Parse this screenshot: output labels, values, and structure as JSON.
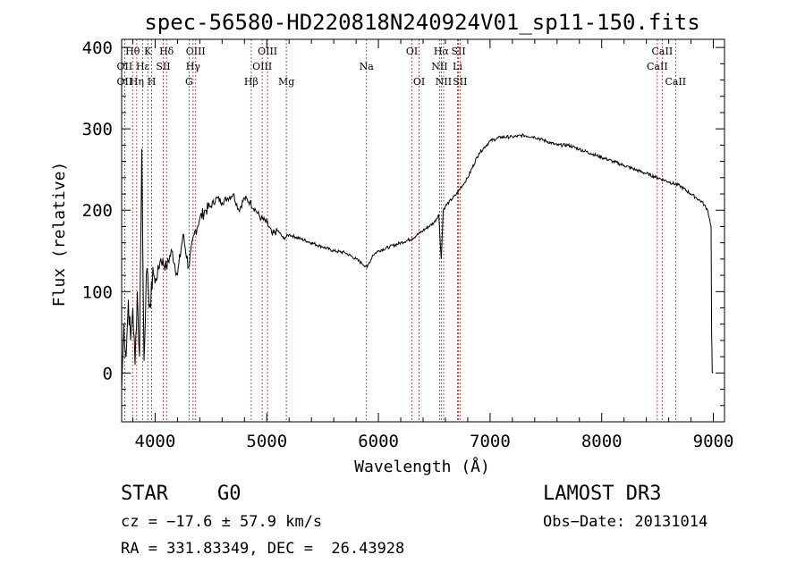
{
  "chart_data": {
    "type": "line",
    "title": "spec-56580-HD220818N240924V01_sp11-150.fits",
    "xlabel": "Wavelength (Å)",
    "ylabel": "Flux (relative)",
    "xlim": [
      3700,
      9100
    ],
    "ylim": [
      -60,
      410
    ],
    "x_ticks": [
      4000,
      5000,
      6000,
      7000,
      8000,
      9000
    ],
    "y_ticks": [
      0,
      100,
      200,
      300,
      400
    ],
    "series": [
      {
        "name": "flux",
        "x": [
          3700,
          3720,
          3740,
          3760,
          3780,
          3800,
          3820,
          3840,
          3860,
          3880,
          3900,
          3920,
          3940,
          3960,
          3980,
          4000,
          4050,
          4100,
          4150,
          4200,
          4250,
          4300,
          4350,
          4400,
          4450,
          4500,
          4550,
          4600,
          4650,
          4700,
          4750,
          4800,
          4850,
          4900,
          4950,
          5000,
          5050,
          5100,
          5150,
          5200,
          5300,
          5400,
          5500,
          5600,
          5700,
          5800,
          5850,
          5900,
          5950,
          6000,
          6100,
          6200,
          6300,
          6400,
          6500,
          6540,
          6563,
          6580,
          6600,
          6700,
          6800,
          6900,
          7000,
          7100,
          7200,
          7300,
          7400,
          7500,
          7600,
          7700,
          7800,
          7900,
          8000,
          8100,
          8200,
          8300,
          8400,
          8500,
          8600,
          8700,
          8800,
          8850,
          8900,
          8950,
          8980,
          8985,
          8990,
          8995
        ],
        "y": [
          -20,
          60,
          20,
          90,
          40,
          80,
          10,
          100,
          20,
          275,
          15,
          120,
          100,
          80,
          130,
          110,
          140,
          130,
          150,
          120,
          170,
          130,
          170,
          190,
          200,
          205,
          215,
          210,
          215,
          220,
          200,
          215,
          210,
          200,
          190,
          185,
          170,
          175,
          165,
          170,
          165,
          160,
          155,
          150,
          148,
          140,
          135,
          130,
          145,
          150,
          155,
          160,
          165,
          175,
          185,
          195,
          140,
          200,
          205,
          220,
          240,
          270,
          285,
          290,
          290,
          292,
          290,
          285,
          280,
          280,
          275,
          270,
          265,
          260,
          255,
          250,
          245,
          240,
          235,
          230,
          220,
          215,
          210,
          200,
          180,
          50,
          0,
          0
        ]
      }
    ],
    "spectral_lines": [
      {
        "label": "Hθ",
        "x": 3798,
        "row": 0
      },
      {
        "label": "K",
        "x": 3934,
        "row": 0
      },
      {
        "label": "Hδ",
        "x": 4102,
        "row": 0
      },
      {
        "label": "OIII",
        "x": 4363,
        "row": 0
      },
      {
        "label": "OIII",
        "x": 5007,
        "row": 0
      },
      {
        "label": "OI",
        "x": 6300,
        "row": 0
      },
      {
        "label": "Hα",
        "x": 6563,
        "row": 0
      },
      {
        "label": "SII",
        "x": 6717,
        "row": 0
      },
      {
        "label": "CaII",
        "x": 8542,
        "row": 0
      },
      {
        "label": "OII",
        "x": 3727,
        "row": 1
      },
      {
        "label": "Hε",
        "x": 3889,
        "row": 1
      },
      {
        "label": "SII",
        "x": 4072,
        "row": 1
      },
      {
        "label": "Hγ",
        "x": 4340,
        "row": 1
      },
      {
        "label": "OIII",
        "x": 4959,
        "row": 1
      },
      {
        "label": "Na",
        "x": 5893,
        "row": 1
      },
      {
        "label": "NII",
        "x": 6548,
        "row": 1
      },
      {
        "label": "Li",
        "x": 6708,
        "row": 1
      },
      {
        "label": "CaII",
        "x": 8498,
        "row": 1
      },
      {
        "label": "OII",
        "x": 3727,
        "row": 2
      },
      {
        "label": "Hη",
        "x": 3835,
        "row": 2
      },
      {
        "label": "H",
        "x": 3969,
        "row": 2
      },
      {
        "label": "G",
        "x": 4304,
        "row": 2
      },
      {
        "label": "Hβ",
        "x": 4861,
        "row": 2
      },
      {
        "label": "Mg",
        "x": 5175,
        "row": 2
      },
      {
        "label": "OI",
        "x": 6364,
        "row": 2
      },
      {
        "label": "NII",
        "x": 6584,
        "row": 2
      },
      {
        "label": "SII",
        "x": 6731,
        "row": 2
      },
      {
        "label": "CaII",
        "x": 8662,
        "row": 2
      }
    ]
  },
  "info": {
    "object_class": "STAR",
    "subclass": "G0",
    "survey": "LAMOST DR3",
    "cz": "cz = −17.6 ± 57.9 km/s",
    "obs_date": "Obs−Date: 20131014",
    "coords": "RA = 331.83349, DEC =  26.43928"
  }
}
